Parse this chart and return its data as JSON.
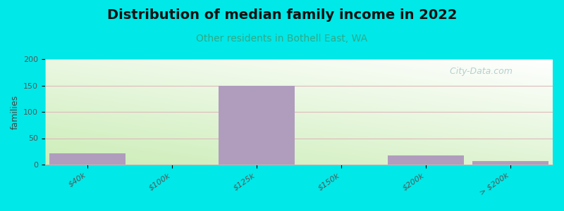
{
  "title": "Distribution of median family income in 2022",
  "subtitle": "Other residents in Bothell East, WA",
  "ylabel": "families",
  "categories": [
    "$40k",
    "$100k",
    "$125k",
    "$150k",
    "$200k",
    "> $200k"
  ],
  "values": [
    22,
    0,
    150,
    0,
    18,
    7
  ],
  "bar_color": "#b09dbe",
  "bar_width": 0.9,
  "ylim": [
    0,
    200
  ],
  "yticks": [
    0,
    50,
    100,
    150,
    200
  ],
  "title_fontsize": 14,
  "subtitle_fontsize": 10,
  "subtitle_color": "#2eaa88",
  "ylabel_fontsize": 9,
  "tick_label_fontsize": 8,
  "background_outer": "#00e8e8",
  "background_plot_top_color": "#f5faf2",
  "background_plot_bottom_color": "#cce8b8",
  "grid_color": "#ddbbbb",
  "watermark_text": "   City-Data.com",
  "watermark_color": "#aac8c8",
  "watermark_fontsize": 9
}
